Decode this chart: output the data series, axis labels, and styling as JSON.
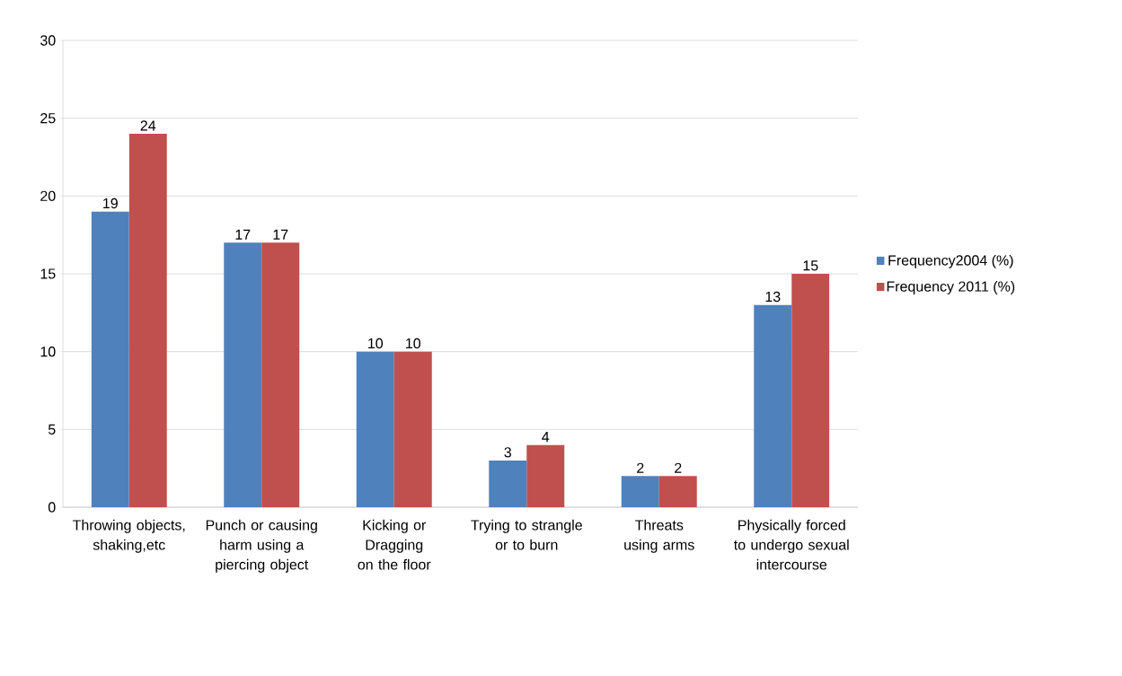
{
  "chart_data": {
    "type": "bar",
    "categories": [
      "Throwing objects, shaking,etc",
      "Punch or causing harm using a piercing object",
      "Kicking or Dragging on the floor",
      "Trying to strangle or to burn",
      "Threats using arms",
      "Physically forced to undergo sexual intercourse"
    ],
    "series": [
      {
        "name": "Frequency2004 (%)",
        "color": "#4f81bd",
        "values": [
          19,
          17,
          10,
          3,
          2,
          13
        ]
      },
      {
        "name": "Frequency 2011 (%)",
        "color": "#c0504d",
        "values": [
          24,
          17,
          10,
          4,
          2,
          15
        ]
      }
    ],
    "ylim": [
      0,
      30
    ],
    "yticks": [
      0,
      5,
      10,
      15,
      20,
      25,
      30
    ],
    "grid": "y",
    "legend": "right",
    "data_labels": true
  }
}
